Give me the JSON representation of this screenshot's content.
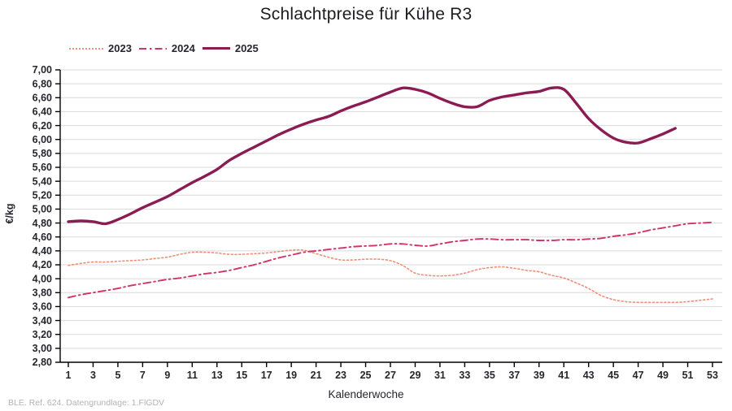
{
  "title": "Schlachtpreise für Kühe R3",
  "footer": "BLE. Ref. 624. Datengrundlage: 1.FlGDV",
  "colors": {
    "series_2023": "#f08f77",
    "series_2024": "#d23368",
    "series_2025": "#8a1b53",
    "grid": "#d9d9d9",
    "axis": "#000000",
    "tick_text": "#26262e",
    "footer_text": "#b2b2ba"
  },
  "chart_data": {
    "type": "line",
    "title": "Schlachtpreise für Kühe R3",
    "xlabel": "Kalenderwoche",
    "ylabel": "€/kg",
    "xlim": [
      1,
      53
    ],
    "x_ticks": [
      1,
      3,
      5,
      7,
      9,
      11,
      13,
      15,
      17,
      19,
      21,
      23,
      25,
      27,
      29,
      31,
      33,
      35,
      37,
      39,
      41,
      43,
      45,
      47,
      49,
      51,
      53
    ],
    "ylim": [
      2.8,
      7.0
    ],
    "y_tick_step": 0.2,
    "grid": "horizontal",
    "legend_position": "top-left",
    "series": [
      {
        "name": "2023",
        "style": "dotted",
        "color": "#f08f77",
        "stroke_width": 1.6,
        "x_start": 1,
        "values": [
          4.19,
          4.22,
          4.24,
          4.24,
          4.25,
          4.26,
          4.27,
          4.29,
          4.31,
          4.35,
          4.38,
          4.38,
          4.37,
          4.35,
          4.35,
          4.36,
          4.37,
          4.39,
          4.41,
          4.41,
          4.36,
          4.31,
          4.27,
          4.27,
          4.28,
          4.28,
          4.26,
          4.19,
          4.08,
          4.05,
          4.04,
          4.05,
          4.08,
          4.13,
          4.16,
          4.17,
          4.15,
          4.12,
          4.1,
          4.05,
          4.01,
          3.94,
          3.86,
          3.76,
          3.7,
          3.67,
          3.66,
          3.66,
          3.66,
          3.66,
          3.67,
          3.69,
          3.71
        ]
      },
      {
        "name": "2024",
        "style": "dash-dot",
        "color": "#d23368",
        "stroke_width": 1.9,
        "x_start": 1,
        "values": [
          3.73,
          3.77,
          3.8,
          3.83,
          3.86,
          3.9,
          3.93,
          3.96,
          3.99,
          4.01,
          4.04,
          4.07,
          4.09,
          4.12,
          4.16,
          4.2,
          4.25,
          4.3,
          4.34,
          4.38,
          4.4,
          4.42,
          4.44,
          4.46,
          4.47,
          4.48,
          4.5,
          4.5,
          4.48,
          4.47,
          4.5,
          4.53,
          4.55,
          4.57,
          4.57,
          4.56,
          4.56,
          4.56,
          4.55,
          4.55,
          4.56,
          4.56,
          4.57,
          4.58,
          4.61,
          4.63,
          4.66,
          4.7,
          4.73,
          4.76,
          4.79,
          4.8,
          4.81
        ]
      },
      {
        "name": "2025",
        "style": "solid",
        "color": "#8a1b53",
        "stroke_width": 3.4,
        "x_start": 1,
        "values": [
          4.82,
          4.83,
          4.82,
          4.79,
          4.85,
          4.93,
          5.02,
          5.1,
          5.18,
          5.28,
          5.38,
          5.47,
          5.57,
          5.7,
          5.8,
          5.89,
          5.98,
          6.07,
          6.15,
          6.22,
          6.28,
          6.33,
          6.41,
          6.48,
          6.54,
          6.61,
          6.68,
          6.74,
          6.72,
          6.67,
          6.59,
          6.52,
          6.47,
          6.47,
          6.56,
          6.61,
          6.64,
          6.67,
          6.69,
          6.74,
          6.72,
          6.52,
          6.3,
          6.14,
          6.02,
          5.96,
          5.95,
          6.01,
          6.08,
          6.16
        ]
      }
    ]
  }
}
